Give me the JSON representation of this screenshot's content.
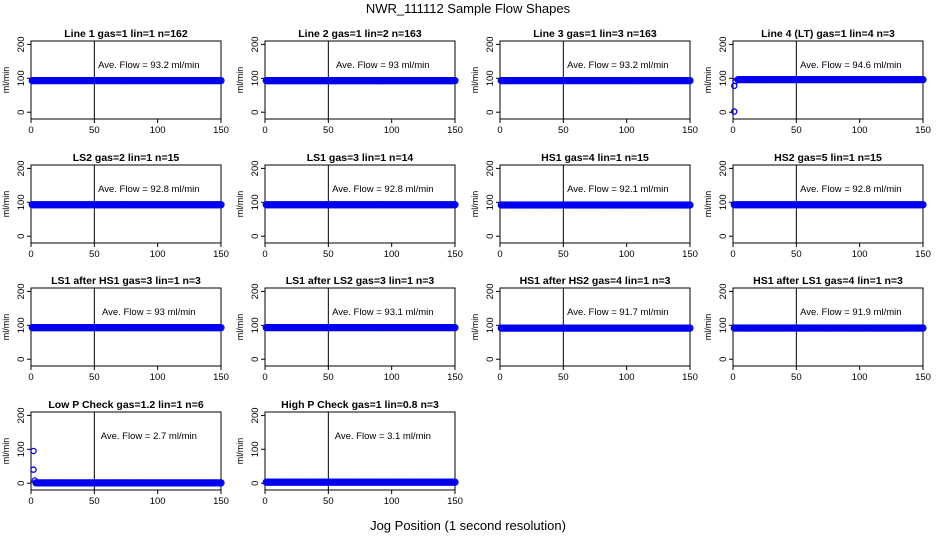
{
  "page": {
    "title": "NWR_111112  Sample Flow Shapes",
    "xlabel": "Jog Position (1 second resolution)"
  },
  "chart_data": [
    {
      "type": "scatter",
      "title": "Line 1 gas=1 lin=1 n=162",
      "annotation": "Ave. Flow = 93.2  ml/min",
      "ylabel": "ml/min",
      "xlim": [
        0,
        150
      ],
      "ylim": [
        -20,
        210
      ],
      "xticks": [
        0,
        50,
        100,
        150
      ],
      "yticks": [
        0,
        100,
        200
      ],
      "vline": 50,
      "hline": 93.2,
      "level": 93.2,
      "startup": []
    },
    {
      "type": "scatter",
      "title": "Line 2 gas=1 lin=2 n=163",
      "annotation": "Ave. Flow = 93  ml/min",
      "ylabel": "ml/min",
      "xlim": [
        0,
        150
      ],
      "ylim": [
        -20,
        210
      ],
      "xticks": [
        0,
        50,
        100,
        150
      ],
      "yticks": [
        0,
        100,
        200
      ],
      "vline": 50,
      "hline": 93,
      "level": 93,
      "startup": []
    },
    {
      "type": "scatter",
      "title": "Line 3 gas=1 lin=3 n=163",
      "annotation": "Ave. Flow = 93.2  ml/min",
      "ylabel": "ml/min",
      "xlim": [
        0,
        150
      ],
      "ylim": [
        -20,
        210
      ],
      "xticks": [
        0,
        50,
        100,
        150
      ],
      "yticks": [
        0,
        100,
        200
      ],
      "vline": 50,
      "hline": 93.2,
      "level": 93.2,
      "startup": []
    },
    {
      "type": "scatter",
      "title": "Line 4 (LT) gas=1 lin=4 n=3",
      "annotation": "Ave. Flow = 94.6  ml/min",
      "ylabel": "ml/min",
      "xlim": [
        0,
        150
      ],
      "ylim": [
        -20,
        210
      ],
      "xticks": [
        0,
        50,
        100,
        150
      ],
      "yticks": [
        0,
        100,
        200
      ],
      "vline": 50,
      "hline": 94.6,
      "level": 96,
      "startup": [
        [
          1,
          2
        ],
        [
          1,
          78
        ],
        [
          2,
          92
        ]
      ]
    },
    {
      "type": "scatter",
      "title": "LS2 gas=2 lin=1 n=15",
      "annotation": "Ave. Flow = 92.8  ml/min",
      "ylabel": "ml/min",
      "xlim": [
        0,
        150
      ],
      "ylim": [
        -20,
        210
      ],
      "xticks": [
        0,
        50,
        100,
        150
      ],
      "yticks": [
        0,
        100,
        200
      ],
      "vline": 50,
      "hline": 92.8,
      "level": 92.8,
      "startup": []
    },
    {
      "type": "scatter",
      "title": "LS1 gas=3 lin=1 n=14",
      "annotation": "Ave. Flow = 92.8  ml/min",
      "ylabel": "ml/min",
      "xlim": [
        0,
        150
      ],
      "ylim": [
        -20,
        210
      ],
      "xticks": [
        0,
        50,
        100,
        150
      ],
      "yticks": [
        0,
        100,
        200
      ],
      "vline": 50,
      "hline": 92.8,
      "level": 92.8,
      "startup": []
    },
    {
      "type": "scatter",
      "title": "HS1 gas=4 lin=1 n=15",
      "annotation": "Ave. Flow = 92.1  ml/min",
      "ylabel": "ml/min",
      "xlim": [
        0,
        150
      ],
      "ylim": [
        -20,
        210
      ],
      "xticks": [
        0,
        50,
        100,
        150
      ],
      "yticks": [
        0,
        100,
        200
      ],
      "vline": 50,
      "hline": 92.1,
      "level": 92.1,
      "startup": []
    },
    {
      "type": "scatter",
      "title": "HS2 gas=5 lin=1 n=15",
      "annotation": "Ave. Flow = 92.8  ml/min",
      "ylabel": "ml/min",
      "xlim": [
        0,
        150
      ],
      "ylim": [
        -20,
        210
      ],
      "xticks": [
        0,
        50,
        100,
        150
      ],
      "yticks": [
        0,
        100,
        200
      ],
      "vline": 50,
      "hline": 92.8,
      "level": 92.8,
      "startup": []
    },
    {
      "type": "scatter",
      "title": "LS1 after HS1 gas=3 lin=1 n=3",
      "annotation": "Ave. Flow = 93  ml/min",
      "ylabel": "ml/min",
      "xlim": [
        0,
        150
      ],
      "ylim": [
        -20,
        210
      ],
      "xticks": [
        0,
        50,
        100,
        150
      ],
      "yticks": [
        0,
        100,
        200
      ],
      "vline": 50,
      "hline": 93,
      "level": 93,
      "startup": []
    },
    {
      "type": "scatter",
      "title": "LS1 after LS2 gas=3 lin=1 n=3",
      "annotation": "Ave. Flow = 93.1  ml/min",
      "ylabel": "ml/min",
      "xlim": [
        0,
        150
      ],
      "ylim": [
        -20,
        210
      ],
      "xticks": [
        0,
        50,
        100,
        150
      ],
      "yticks": [
        0,
        100,
        200
      ],
      "vline": 50,
      "hline": 93.1,
      "level": 93.1,
      "startup": []
    },
    {
      "type": "scatter",
      "title": "HS1 after HS2 gas=4 lin=1 n=3",
      "annotation": "Ave. Flow = 91.7  ml/min",
      "ylabel": "ml/min",
      "xlim": [
        0,
        150
      ],
      "ylim": [
        -20,
        210
      ],
      "xticks": [
        0,
        50,
        100,
        150
      ],
      "yticks": [
        0,
        100,
        200
      ],
      "vline": 50,
      "hline": 91.7,
      "level": 91.7,
      "startup": []
    },
    {
      "type": "scatter",
      "title": "HS1 after LS1 gas=4 lin=1 n=3",
      "annotation": "Ave. Flow = 91.9  ml/min",
      "ylabel": "ml/min",
      "xlim": [
        0,
        150
      ],
      "ylim": [
        -20,
        210
      ],
      "xticks": [
        0,
        50,
        100,
        150
      ],
      "yticks": [
        0,
        100,
        200
      ],
      "vline": 50,
      "hline": 91.9,
      "level": 91.9,
      "startup": []
    },
    {
      "type": "scatter",
      "title": "Low P Check gas=1.2 lin=1 n=6",
      "annotation": "Ave. Flow = 2.7  ml/min",
      "ylabel": "ml/min",
      "xlim": [
        0,
        150
      ],
      "ylim": [
        -20,
        210
      ],
      "xticks": [
        0,
        50,
        100,
        150
      ],
      "yticks": [
        0,
        100,
        200
      ],
      "vline": 50,
      "hline": 2.7,
      "level": 1,
      "startup": [
        [
          2,
          95
        ],
        [
          2,
          40
        ],
        [
          3,
          8
        ]
      ]
    },
    {
      "type": "scatter",
      "title": "High P Check gas=1 lin=0.8 n=3",
      "annotation": "Ave. Flow = 3.1  ml/min",
      "ylabel": "ml/min",
      "xlim": [
        0,
        150
      ],
      "ylim": [
        -20,
        210
      ],
      "xticks": [
        0,
        50,
        100,
        150
      ],
      "yticks": [
        0,
        100,
        200
      ],
      "vline": 50,
      "hline": 3.1,
      "level": 3,
      "startup": []
    }
  ],
  "colors": {
    "points": "#0000ee",
    "axis": "#000000",
    "background": "#ffffff"
  }
}
